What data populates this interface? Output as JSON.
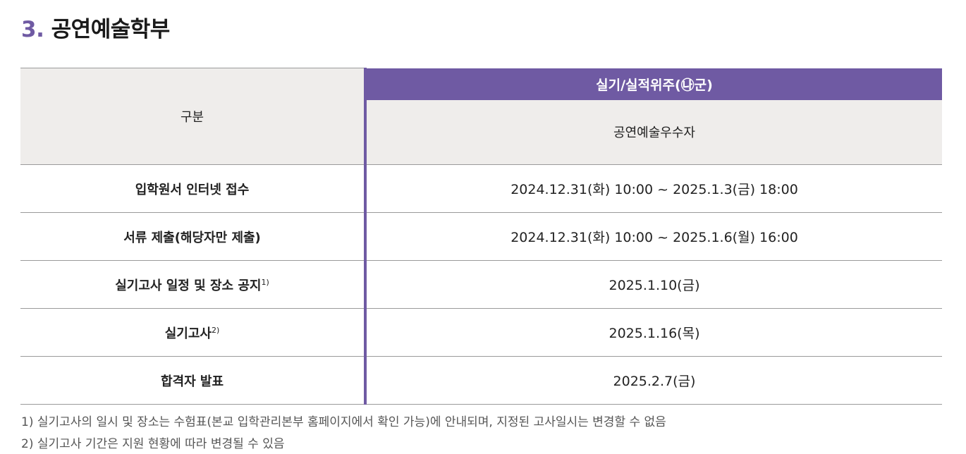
{
  "section": {
    "number": "3.",
    "title": "공연예술학부"
  },
  "table": {
    "header": {
      "category_label": "구분",
      "group_label": "실기/실적위주(㉯군)",
      "sub_label": "공연예술우수자"
    },
    "rows": [
      {
        "label": "입학원서 인터넷 접수",
        "note": "",
        "value": "2024.12.31(화) 10:00 ~ 2025.1.3(금) 18:00"
      },
      {
        "label": "서류 제출(해당자만 제출)",
        "note": "",
        "value": "2024.12.31(화) 10:00 ~ 2025.1.6(월) 16:00"
      },
      {
        "label": "실기고사 일정 및 장소 공지",
        "note": "1)",
        "value": "2025.1.10(금)"
      },
      {
        "label": "실기고사",
        "note": "2)",
        "value": "2025.1.16(목)"
      },
      {
        "label": "합격자 발표",
        "note": "",
        "value": "2025.2.7(금)"
      }
    ]
  },
  "footnotes": [
    "1) 실기고사의 일시 및 장소는 수험표(본교 입학관리본부 홈페이지에서 확인 가능)에 안내되며, 지정된 고사일시는 변경할 수 없음",
    "2) 실기고사 기간은 지원 현황에 따라 변경될 수 있음"
  ],
  "colors": {
    "accent": "#6f5aa3",
    "header_bg": "#efedeb",
    "border": "#9a9a9a"
  }
}
